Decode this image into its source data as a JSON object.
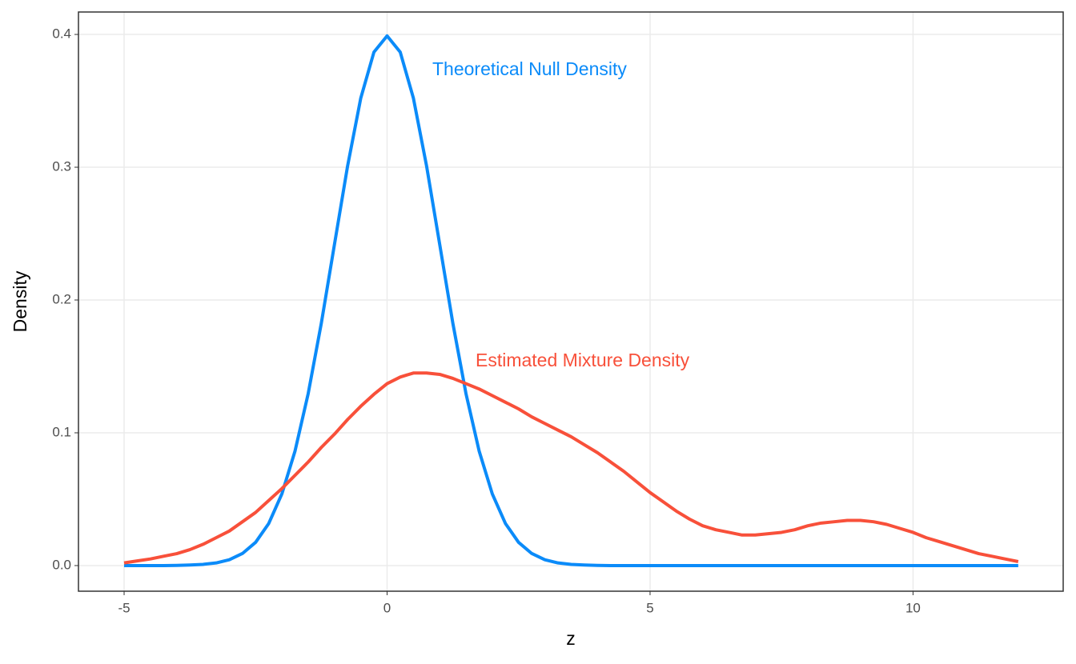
{
  "chart_data": {
    "type": "line",
    "x_label": "z",
    "y_label": "Density",
    "x": [
      -5,
      -4.75,
      -4.5,
      -4.25,
      -4,
      -3.75,
      -3.5,
      -3.25,
      -3,
      -2.75,
      -2.5,
      -2.25,
      -2,
      -1.75,
      -1.5,
      -1.25,
      -1,
      -0.75,
      -0.5,
      -0.25,
      0,
      0.25,
      0.5,
      0.75,
      1,
      1.25,
      1.5,
      1.75,
      2,
      2.25,
      2.5,
      2.75,
      3,
      3.25,
      3.5,
      3.75,
      4,
      4.25,
      4.5,
      4.75,
      5,
      5.25,
      5.5,
      5.75,
      6,
      6.25,
      6.5,
      6.75,
      7,
      7.25,
      7.5,
      7.75,
      8,
      8.25,
      8.5,
      8.75,
      9,
      9.25,
      9.5,
      9.75,
      10,
      10.25,
      10.5,
      10.75,
      11,
      11.25,
      11.5,
      11.75,
      12
    ],
    "series": [
      {
        "name": "Theoretical Null Density",
        "color": "#0b8bf9",
        "values": [
          0,
          0,
          0,
          0,
          0.0001,
          0.0004,
          0.0009,
          0.002,
          0.0044,
          0.0091,
          0.0175,
          0.0317,
          0.054,
          0.0863,
          0.1295,
          0.1826,
          0.242,
          0.3011,
          0.3521,
          0.3867,
          0.3989,
          0.3867,
          0.3521,
          0.3011,
          0.242,
          0.1826,
          0.1295,
          0.0863,
          0.054,
          0.0317,
          0.0175,
          0.0091,
          0.0044,
          0.002,
          0.0009,
          0.0004,
          0.0001,
          0,
          0,
          0,
          0,
          0,
          0,
          0,
          0,
          0,
          0,
          0,
          0,
          0,
          0,
          0,
          0,
          0,
          0,
          0,
          0,
          0,
          0,
          0,
          0,
          0,
          0,
          0,
          0,
          0,
          0,
          0,
          0
        ]
      },
      {
        "name": "Estimated Mixture Density",
        "color": "#f8503a",
        "values": [
          0.002,
          0.0035,
          0.005,
          0.007,
          0.009,
          0.012,
          0.016,
          0.021,
          0.026,
          0.033,
          0.04,
          0.049,
          0.058,
          0.068,
          0.078,
          0.089,
          0.099,
          0.11,
          0.12,
          0.129,
          0.137,
          0.142,
          0.145,
          0.145,
          0.144,
          0.141,
          0.137,
          0.133,
          0.128,
          0.123,
          0.118,
          0.112,
          0.107,
          0.102,
          0.097,
          0.091,
          0.085,
          0.078,
          0.071,
          0.063,
          0.055,
          0.048,
          0.041,
          0.035,
          0.03,
          0.027,
          0.025,
          0.023,
          0.023,
          0.024,
          0.025,
          0.027,
          0.03,
          0.032,
          0.033,
          0.034,
          0.034,
          0.033,
          0.031,
          0.028,
          0.025,
          0.021,
          0.018,
          0.015,
          0.012,
          0.009,
          0.007,
          0.005,
          0.003
        ]
      }
    ],
    "xlim": [
      -5.868,
      12.855
    ],
    "xticks": [
      -5,
      0,
      5,
      10
    ],
    "ylim": [
      -0.0193,
      0.4169
    ],
    "yticks": [
      {
        "value": 0,
        "label": "0.0"
      },
      0.1,
      0.2,
      0.3,
      0.4
    ],
    "grid": true
  }
}
